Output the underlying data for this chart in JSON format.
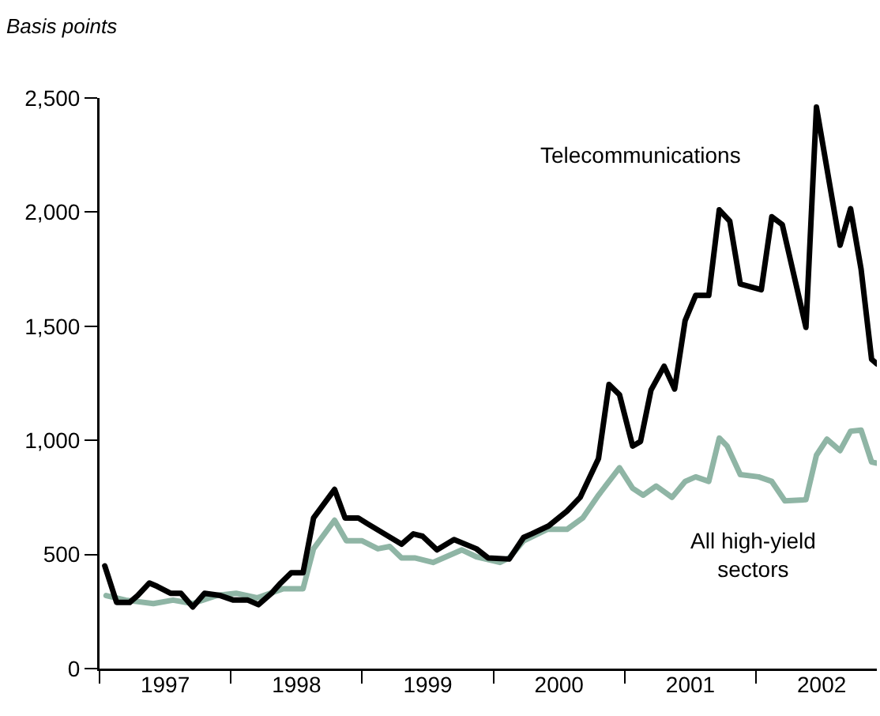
{
  "chart_data": {
    "type": "line",
    "ylabel": "Basis points",
    "xlim": [
      1997,
      2002.92
    ],
    "ylim": [
      0,
      2500
    ],
    "xticks": [
      {
        "value": 1997,
        "label": null
      },
      {
        "value": 1998,
        "label": null
      },
      {
        "value": 1999,
        "label": null
      },
      {
        "value": 2000,
        "label": null
      },
      {
        "value": 2001,
        "label": null
      },
      {
        "value": 2002,
        "label": null
      },
      {
        "value": 1997.5,
        "label": "1997"
      },
      {
        "value": 1998.5,
        "label": "1998"
      },
      {
        "value": 1999.5,
        "label": "1999"
      },
      {
        "value": 2000.5,
        "label": "2000"
      },
      {
        "value": 2001.5,
        "label": "2001"
      },
      {
        "value": 2002.5,
        "label": "2002"
      }
    ],
    "yticks": [
      0,
      {
        "value": 500,
        "label": "500"
      },
      {
        "value": 1000,
        "label": "1,000"
      },
      {
        "value": 1500,
        "label": "1,500"
      },
      {
        "value": 2000,
        "label": "2,000"
      },
      {
        "value": 2500,
        "label": "2,500"
      }
    ],
    "grid": false,
    "legend": false,
    "marker": "none",
    "line_style": "solid",
    "series": [
      {
        "name": "All high-yield sectors",
        "color": "#8fb5a5",
        "x": [
          1997.05,
          1997.2,
          1997.41,
          1997.56,
          1997.71,
          1997.89,
          1998.04,
          1998.2,
          1998.4,
          1998.55,
          1998.63,
          1998.79,
          1998.88,
          1999.0,
          1999.12,
          1999.21,
          1999.3,
          1999.4,
          1999.54,
          1999.76,
          1999.87,
          2000.05,
          2000.12,
          2000.23,
          2000.41,
          2000.56,
          2000.68,
          2000.8,
          2000.96,
          2001.06,
          2001.14,
          2001.24,
          2001.36,
          2001.46,
          2001.54,
          2001.64,
          2001.72,
          2001.78,
          2001.88,
          2002.02,
          2002.12,
          2002.22,
          2002.38,
          2002.46,
          2002.54,
          2002.64,
          2002.72,
          2002.8,
          2002.88,
          2002.92
        ],
        "values": [
          320,
          300,
          285,
          300,
          285,
          320,
          330,
          310,
          350,
          350,
          525,
          650,
          560,
          560,
          525,
          535,
          485,
          485,
          465,
          520,
          490,
          465,
          485,
          560,
          610,
          610,
          660,
          760,
          880,
          790,
          760,
          800,
          750,
          820,
          840,
          820,
          1010,
          975,
          850,
          840,
          820,
          735,
          740,
          935,
          1005,
          955,
          1040,
          1045,
          905,
          900
        ]
      },
      {
        "name": "Telecommunications",
        "color": "#000000",
        "x": [
          1997.04,
          1997.13,
          1997.23,
          1997.29,
          1997.38,
          1997.44,
          1997.54,
          1997.62,
          1997.71,
          1997.8,
          1997.92,
          1998.02,
          1998.13,
          1998.21,
          1998.31,
          1998.38,
          1998.46,
          1998.55,
          1998.63,
          1998.79,
          1998.87,
          1998.97,
          1999.04,
          1999.3,
          1999.39,
          1999.46,
          1999.57,
          1999.7,
          1999.87,
          1999.96,
          2000.12,
          2000.23,
          2000.29,
          2000.42,
          2000.56,
          2000.66,
          2000.8,
          2000.88,
          2000.96,
          2001.06,
          2001.12,
          2001.2,
          2001.3,
          2001.38,
          2001.46,
          2001.54,
          2001.64,
          2001.72,
          2001.8,
          2001.88,
          2002.04,
          2002.12,
          2002.2,
          2002.38,
          2002.46,
          2002.64,
          2002.72,
          2002.8,
          2002.88,
          2002.92
        ],
        "values": [
          450,
          290,
          290,
          320,
          375,
          360,
          330,
          330,
          270,
          330,
          320,
          300,
          300,
          280,
          330,
          375,
          420,
          420,
          660,
          785,
          660,
          660,
          635,
          545,
          590,
          580,
          520,
          565,
          525,
          485,
          480,
          575,
          590,
          625,
          690,
          750,
          920,
          1245,
          1200,
          975,
          995,
          1220,
          1325,
          1225,
          1525,
          1635,
          1635,
          2010,
          1960,
          1685,
          1660,
          1980,
          1945,
          1495,
          2460,
          1855,
          2015,
          1750,
          1355,
          1335
        ]
      }
    ]
  }
}
